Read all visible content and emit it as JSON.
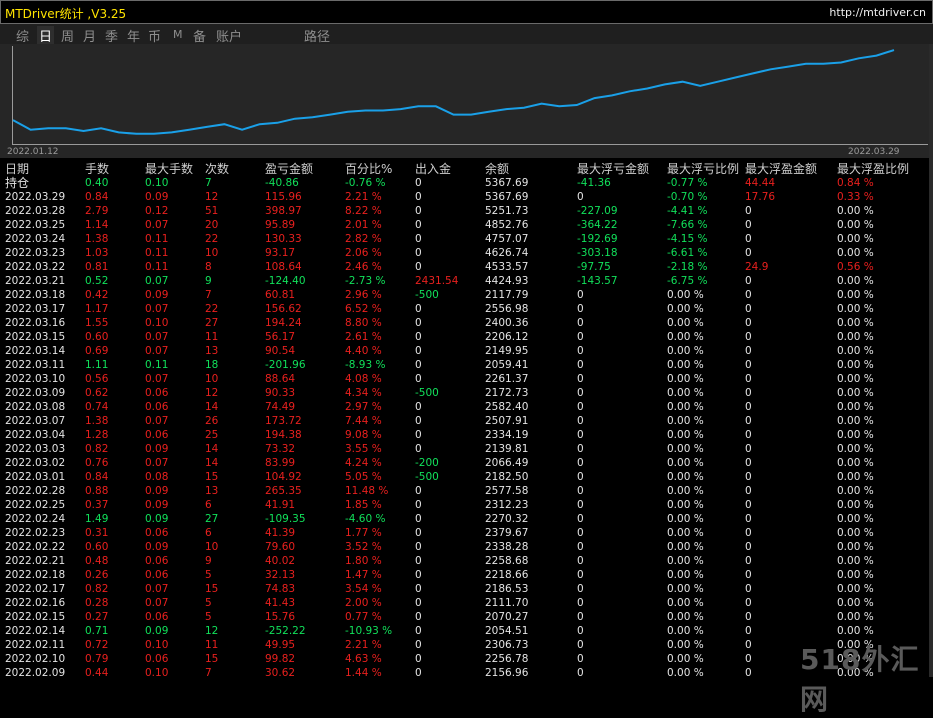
{
  "window": {
    "title": "MTDriver统计 ,V3.25",
    "url": "http://mtdriver.cn"
  },
  "tabs": [
    "综",
    "日",
    "周",
    "月",
    "季",
    "年",
    "币",
    "M",
    "备",
    "账户",
    "路径"
  ],
  "active_tab": "日",
  "chart_data": {
    "type": "line",
    "color": "#1aa0e8",
    "x_start_label": "2022.01.12",
    "x_end_label": "2022.03.29",
    "values": [
      16,
      9,
      10,
      10,
      8,
      10,
      7,
      6,
      6,
      7,
      9,
      11,
      13,
      9,
      13,
      14,
      17,
      18,
      20,
      22,
      23,
      23,
      24,
      26,
      26,
      20,
      20,
      22,
      24,
      25,
      28,
      26,
      27,
      32,
      34,
      37,
      39,
      42,
      44,
      41,
      44,
      47,
      50,
      53,
      55,
      57,
      57,
      58,
      61,
      63,
      67
    ]
  },
  "table": {
    "headers": [
      "日期",
      "手数",
      "最大手数",
      "次数",
      "盈亏金额",
      "百分比%",
      "出入金",
      "余额",
      "最大浮亏金额",
      "最大浮亏比例",
      "最大浮盈金额",
      "最大浮盈比例"
    ],
    "rows": [
      {
        "c": [
          "持仓",
          "0.40",
          "0.10",
          "7",
          "-40.86",
          "-0.76 %",
          "0",
          "5367.69",
          "-41.36",
          "-0.77 %",
          "44.44",
          "0.84 %"
        ],
        "k": [
          "w",
          "n",
          "n",
          "n",
          "n",
          "n",
          "w",
          "w",
          "n",
          "n",
          "p",
          "p"
        ]
      },
      {
        "c": [
          "2022.03.29",
          "0.84",
          "0.09",
          "12",
          "115.96",
          "2.21 %",
          "0",
          "5367.69",
          "0",
          "-0.70 %",
          "17.76",
          "0.33 %"
        ],
        "k": [
          "w",
          "p",
          "p",
          "p",
          "p",
          "p",
          "w",
          "w",
          "w",
          "n",
          "p",
          "p"
        ]
      },
      {
        "c": [
          "2022.03.28",
          "2.79",
          "0.12",
          "51",
          "398.97",
          "8.22 %",
          "0",
          "5251.73",
          "-227.09",
          "-4.41 %",
          "0",
          "0.00 %"
        ],
        "k": [
          "w",
          "p",
          "p",
          "p",
          "p",
          "p",
          "w",
          "w",
          "n",
          "n",
          "w",
          "w"
        ]
      },
      {
        "c": [
          "2022.03.25",
          "1.14",
          "0.07",
          "20",
          "95.89",
          "2.01 %",
          "0",
          "4852.76",
          "-364.22",
          "-7.66 %",
          "0",
          "0.00 %"
        ],
        "k": [
          "w",
          "p",
          "p",
          "p",
          "p",
          "p",
          "w",
          "w",
          "n",
          "n",
          "w",
          "w"
        ]
      },
      {
        "c": [
          "2022.03.24",
          "1.38",
          "0.11",
          "22",
          "130.33",
          "2.82 %",
          "0",
          "4757.07",
          "-192.69",
          "-4.15 %",
          "0",
          "0.00 %"
        ],
        "k": [
          "w",
          "p",
          "p",
          "p",
          "p",
          "p",
          "w",
          "w",
          "n",
          "n",
          "w",
          "w"
        ]
      },
      {
        "c": [
          "2022.03.23",
          "1.03",
          "0.11",
          "10",
          "93.17",
          "2.06 %",
          "0",
          "4626.74",
          "-303.18",
          "-6.61 %",
          "0",
          "0.00 %"
        ],
        "k": [
          "w",
          "p",
          "p",
          "p",
          "p",
          "p",
          "w",
          "w",
          "n",
          "n",
          "w",
          "w"
        ]
      },
      {
        "c": [
          "2022.03.22",
          "0.81",
          "0.11",
          "8",
          "108.64",
          "2.46 %",
          "0",
          "4533.57",
          "-97.75",
          "-2.18 %",
          "24.9",
          "0.56 %"
        ],
        "k": [
          "w",
          "p",
          "p",
          "p",
          "p",
          "p",
          "w",
          "w",
          "n",
          "n",
          "p",
          "p"
        ]
      },
      {
        "c": [
          "2022.03.21",
          "0.52",
          "0.07",
          "9",
          "-124.40",
          "-2.73 %",
          "2431.54",
          "4424.93",
          "-143.57",
          "-6.75 %",
          "0",
          "0.00 %"
        ],
        "k": [
          "w",
          "n",
          "n",
          "n",
          "n",
          "n",
          "p",
          "w",
          "n",
          "n",
          "w",
          "w"
        ]
      },
      {
        "c": [
          "2022.03.18",
          "0.42",
          "0.09",
          "7",
          "60.81",
          "2.96 %",
          "-500",
          "2117.79",
          "0",
          "0.00 %",
          "0",
          "0.00 %"
        ],
        "k": [
          "w",
          "p",
          "p",
          "p",
          "p",
          "p",
          "n",
          "w",
          "w",
          "w",
          "w",
          "w"
        ]
      },
      {
        "c": [
          "2022.03.17",
          "1.17",
          "0.07",
          "22",
          "156.62",
          "6.52 %",
          "0",
          "2556.98",
          "0",
          "0.00 %",
          "0",
          "0.00 %"
        ],
        "k": [
          "w",
          "p",
          "p",
          "p",
          "p",
          "p",
          "w",
          "w",
          "w",
          "w",
          "w",
          "w"
        ]
      },
      {
        "c": [
          "2022.03.16",
          "1.55",
          "0.10",
          "27",
          "194.24",
          "8.80 %",
          "0",
          "2400.36",
          "0",
          "0.00 %",
          "0",
          "0.00 %"
        ],
        "k": [
          "w",
          "p",
          "p",
          "p",
          "p",
          "p",
          "w",
          "w",
          "w",
          "w",
          "w",
          "w"
        ]
      },
      {
        "c": [
          "2022.03.15",
          "0.60",
          "0.07",
          "11",
          "56.17",
          "2.61 %",
          "0",
          "2206.12",
          "0",
          "0.00 %",
          "0",
          "0.00 %"
        ],
        "k": [
          "w",
          "p",
          "p",
          "p",
          "p",
          "p",
          "w",
          "w",
          "w",
          "w",
          "w",
          "w"
        ]
      },
      {
        "c": [
          "2022.03.14",
          "0.69",
          "0.07",
          "13",
          "90.54",
          "4.40 %",
          "0",
          "2149.95",
          "0",
          "0.00 %",
          "0",
          "0.00 %"
        ],
        "k": [
          "w",
          "p",
          "p",
          "p",
          "p",
          "p",
          "w",
          "w",
          "w",
          "w",
          "w",
          "w"
        ]
      },
      {
        "c": [
          "2022.03.11",
          "1.11",
          "0.11",
          "18",
          "-201.96",
          "-8.93 %",
          "0",
          "2059.41",
          "0",
          "0.00 %",
          "0",
          "0.00 %"
        ],
        "k": [
          "w",
          "n",
          "n",
          "n",
          "n",
          "n",
          "w",
          "w",
          "w",
          "w",
          "w",
          "w"
        ]
      },
      {
        "c": [
          "2022.03.10",
          "0.56",
          "0.07",
          "10",
          "88.64",
          "4.08 %",
          "0",
          "2261.37",
          "0",
          "0.00 %",
          "0",
          "0.00 %"
        ],
        "k": [
          "w",
          "p",
          "p",
          "p",
          "p",
          "p",
          "w",
          "w",
          "w",
          "w",
          "w",
          "w"
        ]
      },
      {
        "c": [
          "2022.03.09",
          "0.62",
          "0.06",
          "12",
          "90.33",
          "4.34 %",
          "-500",
          "2172.73",
          "0",
          "0.00 %",
          "0",
          "0.00 %"
        ],
        "k": [
          "w",
          "p",
          "p",
          "p",
          "p",
          "p",
          "n",
          "w",
          "w",
          "w",
          "w",
          "w"
        ]
      },
      {
        "c": [
          "2022.03.08",
          "0.74",
          "0.06",
          "14",
          "74.49",
          "2.97 %",
          "0",
          "2582.40",
          "0",
          "0.00 %",
          "0",
          "0.00 %"
        ],
        "k": [
          "w",
          "p",
          "p",
          "p",
          "p",
          "p",
          "w",
          "w",
          "w",
          "w",
          "w",
          "w"
        ]
      },
      {
        "c": [
          "2022.03.07",
          "1.38",
          "0.07",
          "26",
          "173.72",
          "7.44 %",
          "0",
          "2507.91",
          "0",
          "0.00 %",
          "0",
          "0.00 %"
        ],
        "k": [
          "w",
          "p",
          "p",
          "p",
          "p",
          "p",
          "w",
          "w",
          "w",
          "w",
          "w",
          "w"
        ]
      },
      {
        "c": [
          "2022.03.04",
          "1.28",
          "0.06",
          "25",
          "194.38",
          "9.08 %",
          "0",
          "2334.19",
          "0",
          "0.00 %",
          "0",
          "0.00 %"
        ],
        "k": [
          "w",
          "p",
          "p",
          "p",
          "p",
          "p",
          "w",
          "w",
          "w",
          "w",
          "w",
          "w"
        ]
      },
      {
        "c": [
          "2022.03.03",
          "0.82",
          "0.09",
          "14",
          "73.32",
          "3.55 %",
          "0",
          "2139.81",
          "0",
          "0.00 %",
          "0",
          "0.00 %"
        ],
        "k": [
          "w",
          "p",
          "p",
          "p",
          "p",
          "p",
          "w",
          "w",
          "w",
          "w",
          "w",
          "w"
        ]
      },
      {
        "c": [
          "2022.03.02",
          "0.76",
          "0.07",
          "14",
          "83.99",
          "4.24 %",
          "-200",
          "2066.49",
          "0",
          "0.00 %",
          "0",
          "0.00 %"
        ],
        "k": [
          "w",
          "p",
          "p",
          "p",
          "p",
          "p",
          "n",
          "w",
          "w",
          "w",
          "w",
          "w"
        ]
      },
      {
        "c": [
          "2022.03.01",
          "0.84",
          "0.08",
          "15",
          "104.92",
          "5.05 %",
          "-500",
          "2182.50",
          "0",
          "0.00 %",
          "0",
          "0.00 %"
        ],
        "k": [
          "w",
          "p",
          "p",
          "p",
          "p",
          "p",
          "n",
          "w",
          "w",
          "w",
          "w",
          "w"
        ]
      },
      {
        "c": [
          "2022.02.28",
          "0.88",
          "0.09",
          "13",
          "265.35",
          "11.48 %",
          "0",
          "2577.58",
          "0",
          "0.00 %",
          "0",
          "0.00 %"
        ],
        "k": [
          "w",
          "p",
          "p",
          "p",
          "p",
          "p",
          "w",
          "w",
          "w",
          "w",
          "w",
          "w"
        ]
      },
      {
        "c": [
          "2022.02.25",
          "0.37",
          "0.09",
          "6",
          "41.91",
          "1.85 %",
          "0",
          "2312.23",
          "0",
          "0.00 %",
          "0",
          "0.00 %"
        ],
        "k": [
          "w",
          "p",
          "p",
          "p",
          "p",
          "p",
          "w",
          "w",
          "w",
          "w",
          "w",
          "w"
        ]
      },
      {
        "c": [
          "2022.02.24",
          "1.49",
          "0.09",
          "27",
          "-109.35",
          "-4.60 %",
          "0",
          "2270.32",
          "0",
          "0.00 %",
          "0",
          "0.00 %"
        ],
        "k": [
          "w",
          "n",
          "n",
          "n",
          "n",
          "n",
          "w",
          "w",
          "w",
          "w",
          "w",
          "w"
        ]
      },
      {
        "c": [
          "2022.02.23",
          "0.31",
          "0.06",
          "6",
          "41.39",
          "1.77 %",
          "0",
          "2379.67",
          "0",
          "0.00 %",
          "0",
          "0.00 %"
        ],
        "k": [
          "w",
          "p",
          "p",
          "p",
          "p",
          "p",
          "w",
          "w",
          "w",
          "w",
          "w",
          "w"
        ]
      },
      {
        "c": [
          "2022.02.22",
          "0.60",
          "0.09",
          "10",
          "79.60",
          "3.52 %",
          "0",
          "2338.28",
          "0",
          "0.00 %",
          "0",
          "0.00 %"
        ],
        "k": [
          "w",
          "p",
          "p",
          "p",
          "p",
          "p",
          "w",
          "w",
          "w",
          "w",
          "w",
          "w"
        ]
      },
      {
        "c": [
          "2022.02.21",
          "0.48",
          "0.06",
          "9",
          "40.02",
          "1.80 %",
          "0",
          "2258.68",
          "0",
          "0.00 %",
          "0",
          "0.00 %"
        ],
        "k": [
          "w",
          "p",
          "p",
          "p",
          "p",
          "p",
          "w",
          "w",
          "w",
          "w",
          "w",
          "w"
        ]
      },
      {
        "c": [
          "2022.02.18",
          "0.26",
          "0.06",
          "5",
          "32.13",
          "1.47 %",
          "0",
          "2218.66",
          "0",
          "0.00 %",
          "0",
          "0.00 %"
        ],
        "k": [
          "w",
          "p",
          "p",
          "p",
          "p",
          "p",
          "w",
          "w",
          "w",
          "w",
          "w",
          "w"
        ]
      },
      {
        "c": [
          "2022.02.17",
          "0.82",
          "0.07",
          "15",
          "74.83",
          "3.54 %",
          "0",
          "2186.53",
          "0",
          "0.00 %",
          "0",
          "0.00 %"
        ],
        "k": [
          "w",
          "p",
          "p",
          "p",
          "p",
          "p",
          "w",
          "w",
          "w",
          "w",
          "w",
          "w"
        ]
      },
      {
        "c": [
          "2022.02.16",
          "0.28",
          "0.07",
          "5",
          "41.43",
          "2.00 %",
          "0",
          "2111.70",
          "0",
          "0.00 %",
          "0",
          "0.00 %"
        ],
        "k": [
          "w",
          "p",
          "p",
          "p",
          "p",
          "p",
          "w",
          "w",
          "w",
          "w",
          "w",
          "w"
        ]
      },
      {
        "c": [
          "2022.02.15",
          "0.27",
          "0.06",
          "5",
          "15.76",
          "0.77 %",
          "0",
          "2070.27",
          "0",
          "0.00 %",
          "0",
          "0.00 %"
        ],
        "k": [
          "w",
          "p",
          "p",
          "p",
          "p",
          "p",
          "w",
          "w",
          "w",
          "w",
          "w",
          "w"
        ]
      },
      {
        "c": [
          "2022.02.14",
          "0.71",
          "0.09",
          "12",
          "-252.22",
          "-10.93 %",
          "0",
          "2054.51",
          "0",
          "0.00 %",
          "0",
          "0.00 %"
        ],
        "k": [
          "w",
          "n",
          "n",
          "n",
          "n",
          "n",
          "w",
          "w",
          "w",
          "w",
          "w",
          "w"
        ]
      },
      {
        "c": [
          "2022.02.11",
          "0.72",
          "0.10",
          "11",
          "49.95",
          "2.21 %",
          "0",
          "2306.73",
          "0",
          "0.00 %",
          "0",
          "0.00 %"
        ],
        "k": [
          "w",
          "p",
          "p",
          "p",
          "p",
          "p",
          "w",
          "w",
          "w",
          "w",
          "w",
          "w"
        ]
      },
      {
        "c": [
          "2022.02.10",
          "0.79",
          "0.06",
          "15",
          "99.82",
          "4.63 %",
          "0",
          "2256.78",
          "0",
          "0.00 %",
          "0",
          "0.00 %"
        ],
        "k": [
          "w",
          "p",
          "p",
          "p",
          "p",
          "p",
          "w",
          "w",
          "w",
          "w",
          "w",
          "w"
        ]
      },
      {
        "c": [
          "2022.02.09",
          "0.44",
          "0.10",
          "7",
          "30.62",
          "1.44 %",
          "0",
          "2156.96",
          "0",
          "0.00 %",
          "0",
          "0.00 %"
        ],
        "k": [
          "w",
          "p",
          "p",
          "p",
          "p",
          "p",
          "w",
          "w",
          "w",
          "w",
          "w",
          "w"
        ]
      }
    ]
  },
  "watermark": "518外汇网"
}
